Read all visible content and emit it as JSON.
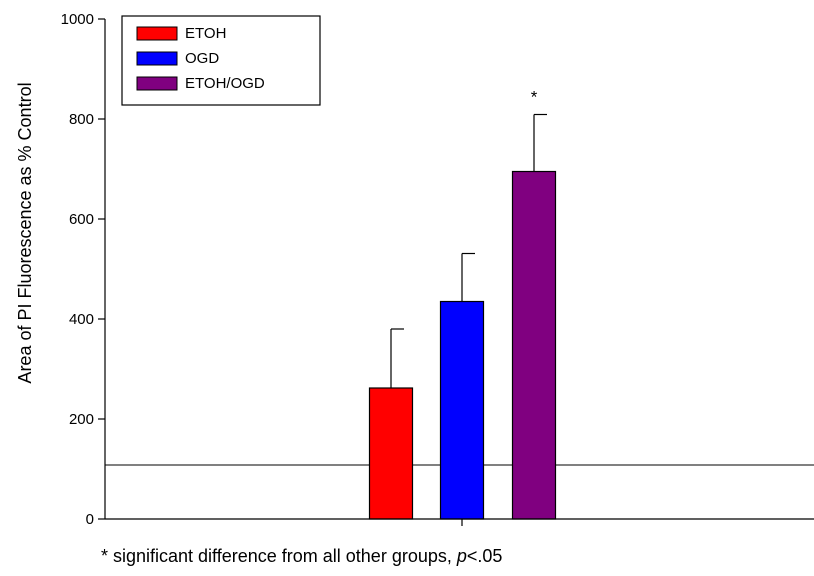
{
  "chart_data": {
    "type": "bar",
    "title": "",
    "xlabel": "",
    "ylabel": "Area of PI Fluorescence as % Control",
    "ylim": [
      0,
      1000
    ],
    "yticks": [
      0,
      200,
      400,
      600,
      800,
      1000
    ],
    "grid": false,
    "legend_position": "top-left",
    "reference_line": 108,
    "series": [
      {
        "name": "ETOH",
        "value": 262,
        "error": 118,
        "color": "#ff0000",
        "annotation": ""
      },
      {
        "name": "OGD",
        "value": 435,
        "error": 96,
        "color": "#0000ff",
        "annotation": ""
      },
      {
        "name": "ETOH/OGD",
        "value": 695,
        "error": 114,
        "color": "#800080",
        "annotation": "*"
      }
    ],
    "footnote": {
      "prefix": "* significant difference from all other groups, ",
      "italic": "p",
      "suffix": "<.05"
    }
  }
}
